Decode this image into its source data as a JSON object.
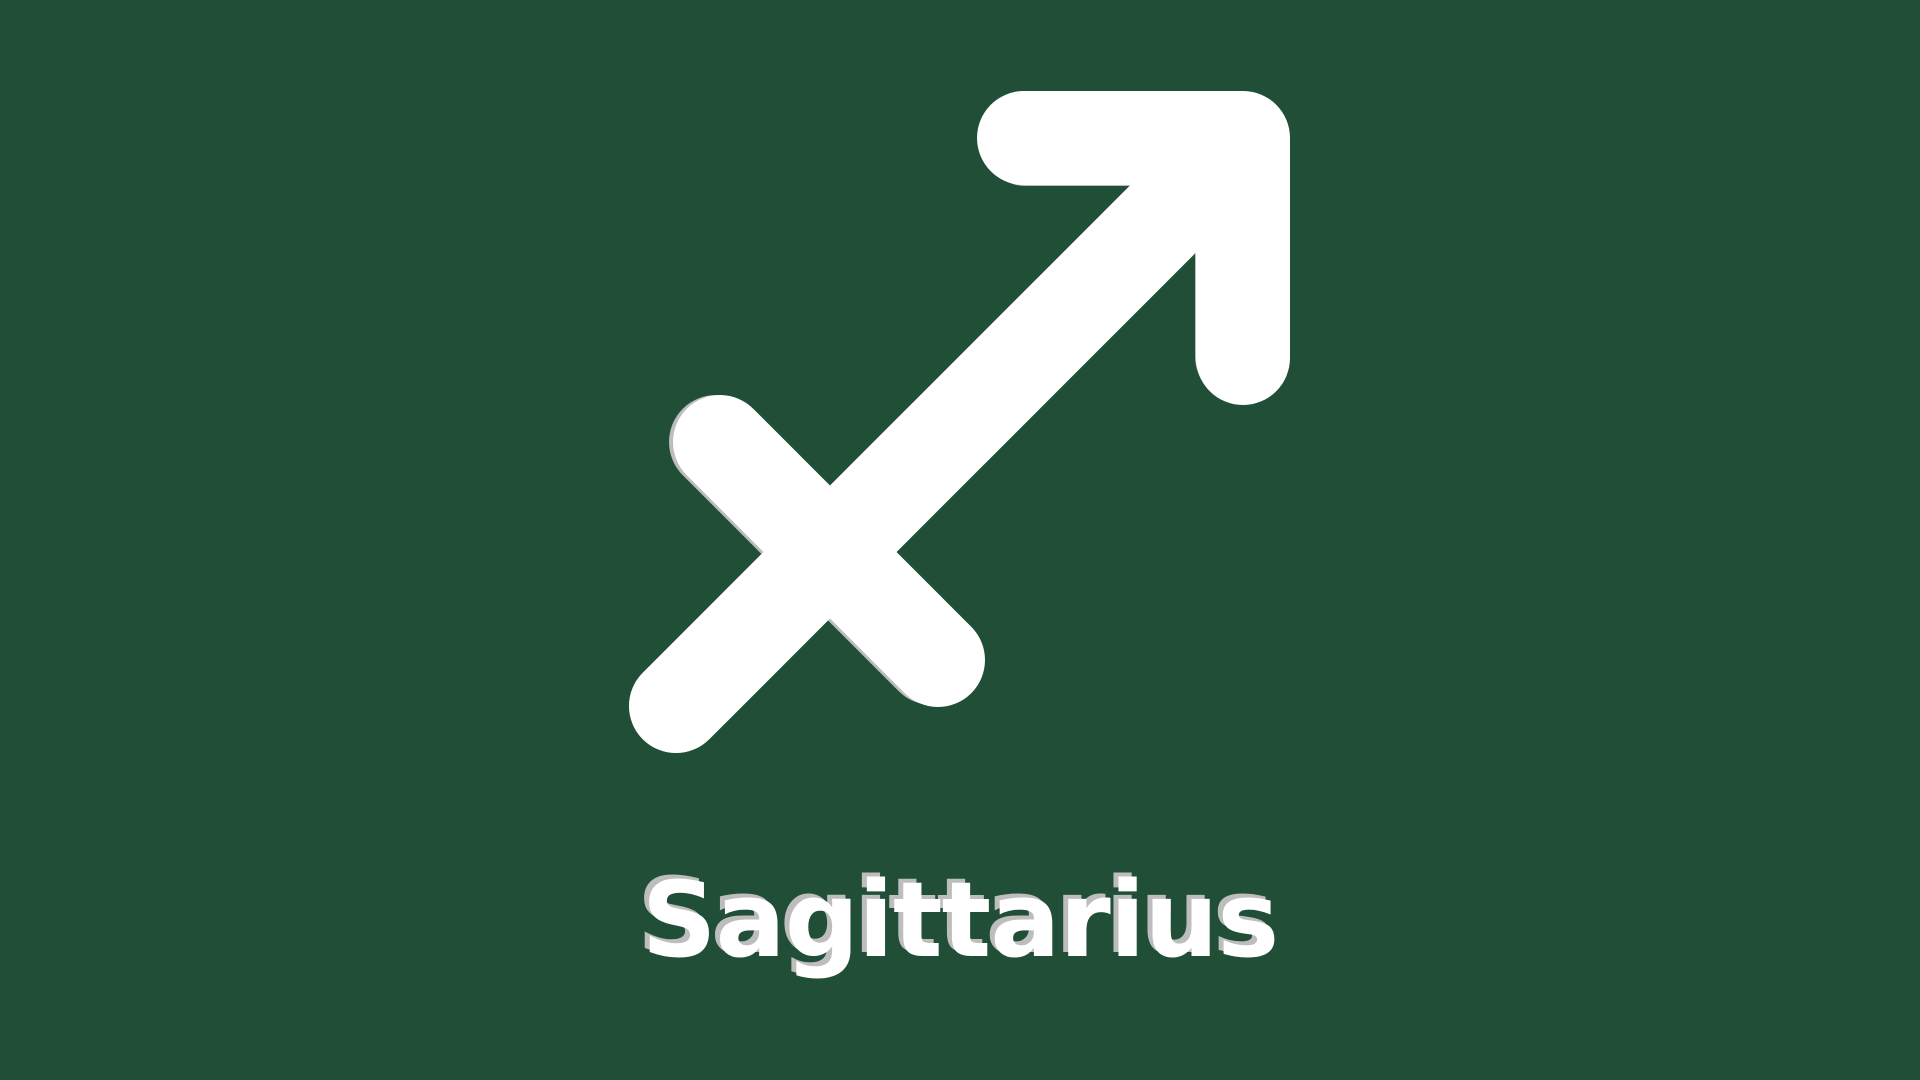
{
  "background_color": "#214e36",
  "symbol": {
    "icon": "sagittarius-icon",
    "fill_color": "#ffffff",
    "shadow_color": "#bdbdbd"
  },
  "label": {
    "text": "Sagittarius",
    "color": "#ffffff"
  }
}
